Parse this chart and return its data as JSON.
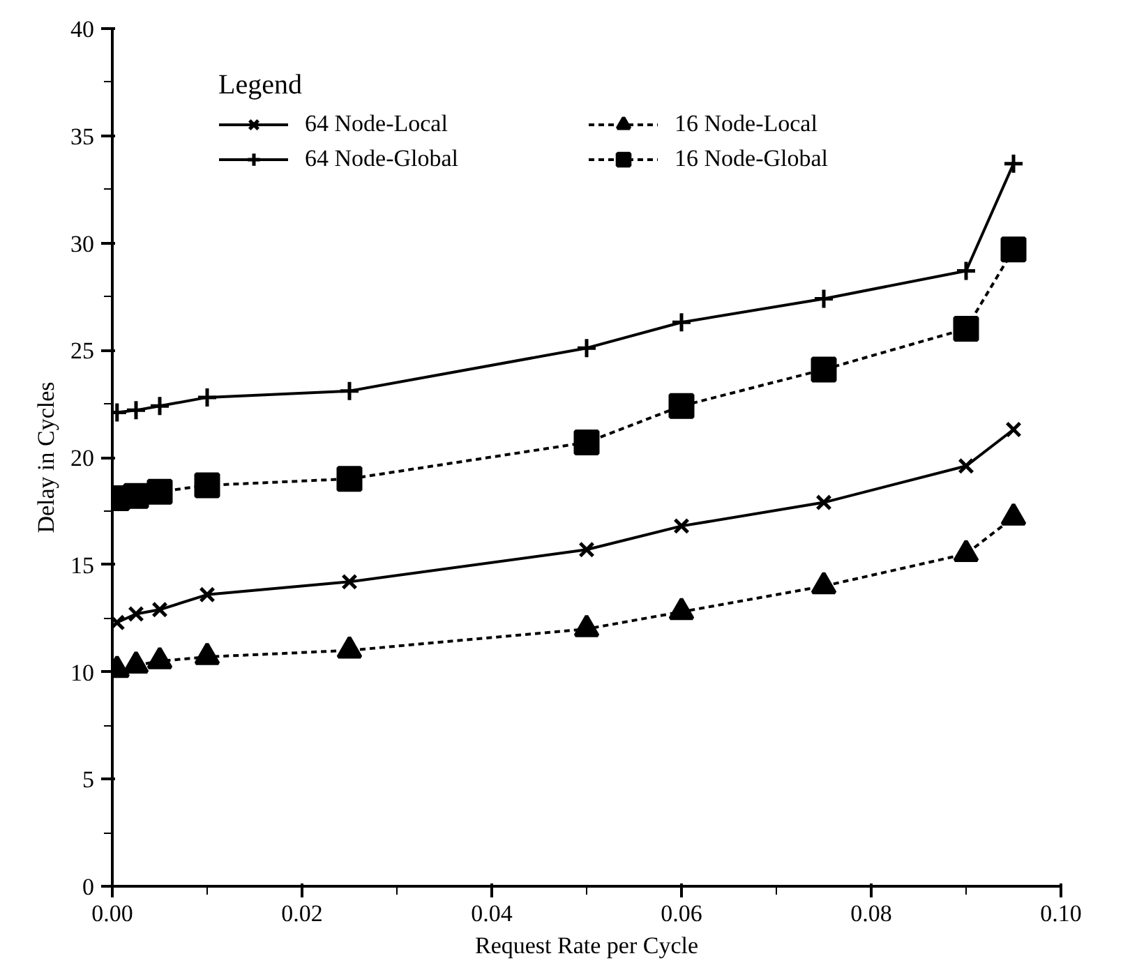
{
  "chart_data": {
    "type": "line",
    "xlabel": "Request Rate per Cycle",
    "ylabel": "Delay in Cycles",
    "legend_title": "Legend",
    "x": [
      0.0005,
      0.0025,
      0.005,
      0.01,
      0.025,
      0.05,
      0.06,
      0.075,
      0.09,
      0.095
    ],
    "series": [
      {
        "name": "64 Node-Local",
        "color": "#000000",
        "marker": "cross",
        "line_style": "solid",
        "values": [
          12.3,
          12.7,
          12.9,
          13.6,
          14.2,
          15.7,
          16.8,
          17.9,
          19.6,
          21.3
        ]
      },
      {
        "name": "64 Node-Global",
        "color": "#000000",
        "marker": "plus",
        "line_style": "solid",
        "values": [
          22.1,
          22.2,
          22.4,
          22.8,
          23.1,
          25.1,
          26.3,
          27.4,
          28.7,
          33.7
        ]
      },
      {
        "name": "16 Node-Local",
        "color": "#000000",
        "marker": "triangle",
        "line_style": "dashed",
        "values": [
          10.1,
          10.3,
          10.5,
          10.7,
          11.0,
          12.0,
          12.8,
          14.0,
          15.5,
          17.2
        ]
      },
      {
        "name": "16 Node-Global",
        "color": "#000000",
        "marker": "square",
        "line_style": "dashed",
        "values": [
          18.1,
          18.2,
          18.4,
          18.7,
          19.0,
          20.7,
          22.4,
          24.1,
          26.0,
          29.7
        ]
      }
    ],
    "xlim": [
      0,
      0.1
    ],
    "ylim": [
      0,
      40
    ],
    "xticks": [
      {
        "value": 0,
        "label": "0.00"
      },
      {
        "value": 0.02,
        "label": "0.02"
      },
      {
        "value": 0.04,
        "label": "0.04"
      },
      {
        "value": 0.06,
        "label": "0.06"
      },
      {
        "value": 0.08,
        "label": "0.08"
      },
      {
        "value": 0.1,
        "label": "0.10"
      }
    ],
    "yticks": [
      0,
      5,
      10,
      15,
      20,
      25,
      30,
      35,
      40
    ],
    "grid": false,
    "legend": "top"
  }
}
